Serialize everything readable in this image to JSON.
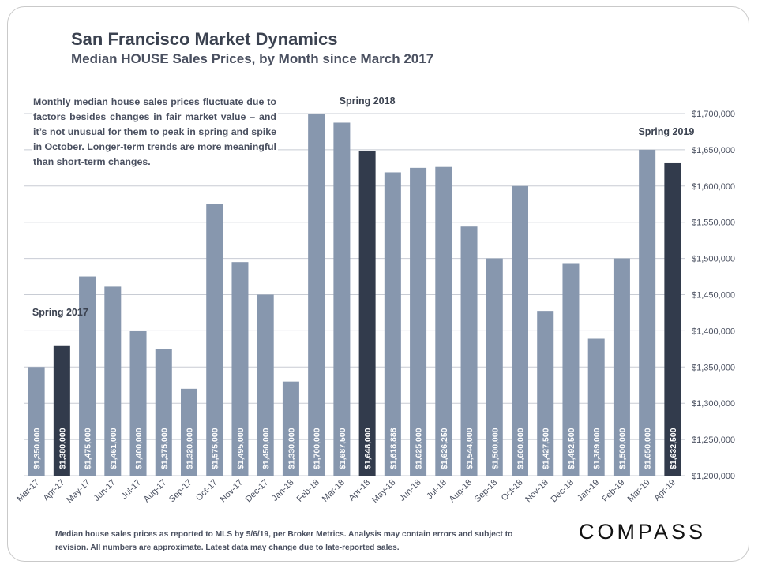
{
  "header": {
    "title": "San Francisco Market Dynamics",
    "subtitle": "Median HOUSE Sales Prices, by Month since March 2017"
  },
  "note": "Monthly median house sales prices fluctuate due to factors besides changes in fair market value – and it’s not unusual for them to peak in spring and spike in October. Longer-term trends are more meaningful than short-term changes.",
  "footnote": "Median house sales prices as reported to MLS by 5/6/19, per Broker Metrics.  Analysis may contain errors and subject to revision. All numbers are approximate. Latest data may change due to late-reported sales.",
  "brand": {
    "logo_text": "COMPASS"
  },
  "colors": {
    "bar": "#8797ae",
    "highlight": "#323b4c",
    "grid": "#c8ccd4",
    "text": "#4a5060"
  },
  "chart_data": {
    "type": "bar",
    "title": "Median HOUSE Sales Prices, by Month since March 2017",
    "xlabel": "",
    "ylabel": "",
    "ylim": [
      1200000,
      1700000
    ],
    "yticks": [
      1200000,
      1250000,
      1300000,
      1350000,
      1400000,
      1450000,
      1500000,
      1550000,
      1600000,
      1650000,
      1700000
    ],
    "ytick_labels": [
      "$1,200,000",
      "$1,250,000",
      "$1,300,000",
      "$1,350,000",
      "$1,400,000",
      "$1,450,000",
      "$1,500,000",
      "$1,550,000",
      "$1,600,000",
      "$1,650,000",
      "$1,700,000"
    ],
    "axis_side": "right",
    "grid": true,
    "categories": [
      "Mar-17",
      "Apr-17",
      "May-17",
      "Jun-17",
      "Jul-17",
      "Aug-17",
      "Sep-17",
      "Oct-17",
      "Nov-17",
      "Dec-17",
      "Jan-18",
      "Feb-18",
      "Mar-18",
      "Apr-18",
      "May-18",
      "Jun-18",
      "Jul-18",
      "Aug-18",
      "Sep-18",
      "Oct-18",
      "Nov-18",
      "Dec-18",
      "Jan-19",
      "Feb-19",
      "Mar-19",
      "Apr-19"
    ],
    "values": [
      1350000,
      1380000,
      1475000,
      1461000,
      1400000,
      1375000,
      1320000,
      1575000,
      1495000,
      1450000,
      1330000,
      1700000,
      1687500,
      1648000,
      1618888,
      1625000,
      1626250,
      1544000,
      1500000,
      1600000,
      1427500,
      1492500,
      1389000,
      1500000,
      1650000,
      1632500
    ],
    "data_labels": [
      "$1,350,000",
      "$1,380,000",
      "$1,475,000",
      "$1,461,000",
      "$1,400,000",
      "$1,375,000",
      "$1,320,000",
      "$1,575,000",
      "$1,495,000",
      "$1,450,000",
      "$1,330,000",
      "$1,700,000",
      "$1,687,500",
      "$1,648,000",
      "$1,618,888",
      "$1,625,000",
      "$1,626,250",
      "$1,544,000",
      "$1,500,000",
      "$1,600,000",
      "$1,427,500",
      "$1,492,500",
      "$1,389,000",
      "$1,500,000",
      "$1,650,000",
      "$1,632,500"
    ],
    "highlighted": [
      "Apr-17",
      "Apr-18",
      "Apr-19"
    ],
    "annotations": [
      {
        "text": "Spring 2017",
        "category": "Apr-17"
      },
      {
        "text": "Spring 2018",
        "category": "Apr-18"
      },
      {
        "text": "Spring 2019",
        "category": "Apr-19"
      }
    ]
  }
}
